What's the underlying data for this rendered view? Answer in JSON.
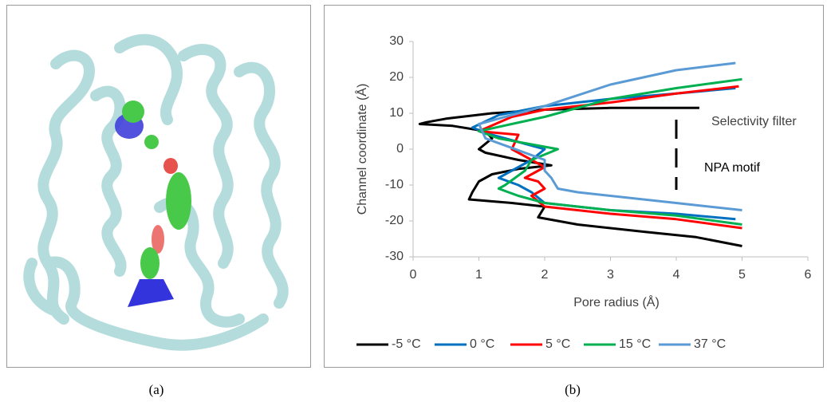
{
  "captions": [
    "(a)",
    "(b)"
  ],
  "chart_data": {
    "type": "line",
    "x_label": "Pore radius (Å)",
    "y_label": "Channel coordinate (Å)",
    "annotations": [
      "Selectivity filter",
      "NPA motif"
    ],
    "xlim": [
      0,
      6
    ],
    "xticks": [
      0,
      1,
      2,
      3,
      4,
      5,
      6
    ],
    "ylim": [
      -30,
      30
    ],
    "yticks": [
      -30,
      -20,
      -10,
      0,
      10,
      20,
      30
    ],
    "grid": false,
    "legend": "bottom",
    "series": [
      {
        "name": "-5 °C",
        "color": "#000000",
        "x": [
          4.35,
          3,
          2,
          1.2,
          0.5,
          0.2,
          0.1,
          0.6,
          1.1,
          1.2,
          1.0,
          1.1,
          1.6,
          2.1,
          1.6,
          1.2,
          1.0,
          0.9,
          0.85,
          1.5,
          2.0,
          1.9,
          2.5,
          3.5,
          4.3,
          5.0
        ],
        "values": [
          11.5,
          11.5,
          11,
          10,
          8.5,
          7.5,
          7,
          6.5,
          5,
          3,
          0,
          -1,
          -3,
          -4.5,
          -5.5,
          -7,
          -9,
          -12,
          -14,
          -15,
          -16,
          -19,
          -21,
          -23,
          -24.5,
          -27
        ]
      },
      {
        "name": "0 °C",
        "color": "#0070c0",
        "x": [
          4.9,
          4,
          3,
          2,
          1.3,
          0.9,
          1.2,
          1.6,
          2.0,
          1.8,
          1.5,
          1.3,
          1.6,
          1.8,
          2.0,
          3,
          4,
          4.9
        ],
        "values": [
          17,
          15.5,
          14,
          12,
          9.5,
          6,
          4,
          2,
          0,
          -3,
          -6,
          -8,
          -10,
          -12,
          -15,
          -17,
          -18,
          -19.5
        ]
      },
      {
        "name": "5 °C",
        "color": "#ff0000",
        "x": [
          4.95,
          4,
          3,
          2,
          1.5,
          1.0,
          1.6,
          1.5,
          1.7,
          2.0,
          1.7,
          1.9,
          2.0,
          1.8,
          2.0,
          3,
          4,
          5.0
        ],
        "values": [
          17.5,
          15.5,
          13,
          11,
          9,
          5,
          4,
          0,
          -2,
          -5,
          -8,
          -9,
          -11,
          -13,
          -16,
          -18,
          -19.5,
          -22
        ]
      },
      {
        "name": "15 °C",
        "color": "#00b050",
        "x": [
          5.0,
          4,
          3,
          2,
          1,
          1.3,
          2.2,
          1.8,
          1.7,
          1.4,
          1.3,
          1.6,
          2.0,
          3,
          4,
          5.0
        ],
        "values": [
          19.5,
          17,
          14,
          9,
          5,
          3,
          0,
          -3,
          -6,
          -10,
          -11,
          -13,
          -15,
          -17,
          -18.5,
          -21
        ]
      },
      {
        "name": "37 °C",
        "color": "#5b9bd5",
        "x": [
          4.9,
          4,
          3,
          2,
          1,
          1.1,
          2,
          2.0,
          2.1,
          2.2,
          2.5,
          4,
          5.0
        ],
        "values": [
          24,
          22,
          18,
          12,
          7,
          3,
          -3,
          -6,
          -8,
          -11,
          -12,
          -15,
          -17
        ]
      }
    ]
  }
}
